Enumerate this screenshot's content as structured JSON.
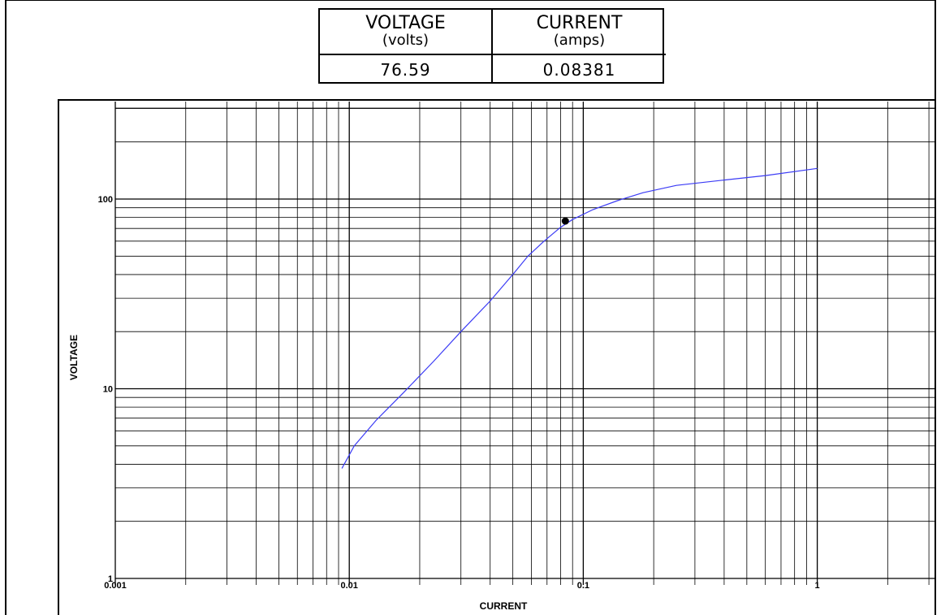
{
  "readout": {
    "voltage_header": "VOLTAGE",
    "voltage_unit": "(volts)",
    "current_header": "CURRENT",
    "current_unit": "(amps)",
    "voltage_value": "76.59",
    "current_value": "0.08381"
  },
  "chart_data": {
    "type": "line",
    "title": "",
    "xlabel": "CURRENT",
    "ylabel": "VOLTAGE",
    "x_scale": "log",
    "y_scale": "log",
    "xlim": [
      0.001,
      5
    ],
    "ylim": [
      1,
      350
    ],
    "x_ticks": [
      {
        "value": 0.001,
        "label": "0.001"
      },
      {
        "value": 0.01,
        "label": "0.01"
      },
      {
        "value": 0.1,
        "label": "0.1"
      },
      {
        "value": 1,
        "label": "1"
      }
    ],
    "y_ticks": [
      {
        "value": 1,
        "label": "1"
      },
      {
        "value": 10,
        "label": "10"
      },
      {
        "value": 100,
        "label": "100"
      }
    ],
    "grid": true,
    "series": [
      {
        "color": "#3b3bf5",
        "x": [
          0.0093,
          0.0105,
          0.013,
          0.017,
          0.023,
          0.03,
          0.04,
          0.05,
          0.058,
          0.068,
          0.08,
          0.09,
          0.11,
          0.14,
          0.18,
          0.25,
          0.4,
          0.6,
          1.0
        ],
        "y": [
          3.8,
          5.0,
          6.8,
          9.5,
          14,
          20,
          29,
          40,
          50,
          60,
          71,
          78,
          88,
          98,
          108,
          118,
          126,
          133,
          145
        ]
      }
    ],
    "marker": {
      "x": 0.08381,
      "y": 76.59,
      "color": "#000000"
    }
  }
}
